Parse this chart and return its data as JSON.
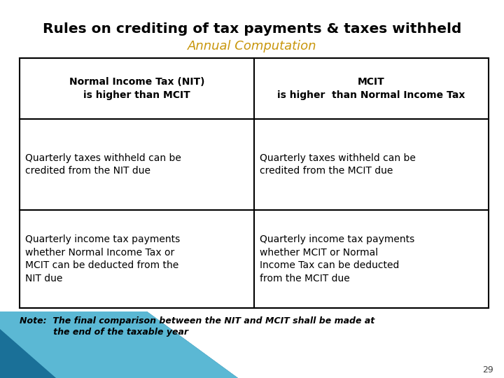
{
  "title": "Rules on crediting of tax payments & taxes withheld",
  "subtitle": "Annual Computation",
  "title_color": "#000000",
  "subtitle_color": "#C8960C",
  "background_color": "#ffffff",
  "table_border_color": "#000000",
  "header_left": "Normal Income Tax (NIT)\nis higher than MCIT",
  "header_right": "MCIT\nis higher  than Normal Income Tax",
  "row1_left": "Quarterly taxes withheld can be\ncredited from the NIT due",
  "row1_right": "Quarterly taxes withheld can be\ncredited from the MCIT due",
  "row2_left": "Quarterly income tax payments\nwhether Normal Income Tax or\nMCIT can be deducted from the\nNIT due",
  "row2_right": "Quarterly income tax payments\nwhether MCIT or Normal\nIncome Tax can be deducted\nfrom the MCIT due",
  "note_line1": "Note:  The final comparison between the NIT and MCIT shall be made at",
  "note_line2": "           the end of the taxable year",
  "page_number": "29",
  "blue_dark": "#1A7098",
  "blue_light": "#5BB8D4"
}
